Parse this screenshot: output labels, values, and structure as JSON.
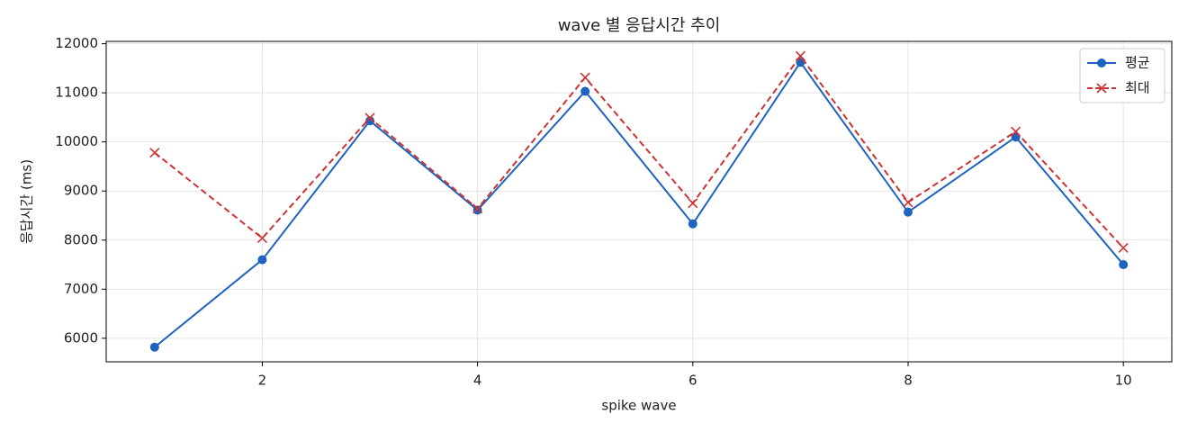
{
  "chart_data": {
    "type": "line",
    "title": "wave 별 응답시간 추이",
    "xlabel": "spike wave",
    "ylabel": "응답시간 (ms)",
    "x": [
      1,
      2,
      3,
      4,
      5,
      6,
      7,
      8,
      9,
      10
    ],
    "series": [
      {
        "name": "평균",
        "color": "#1f63c0",
        "dash": false,
        "marker": "o",
        "values": [
          5820,
          7600,
          10430,
          8610,
          11030,
          8330,
          11620,
          8570,
          10100,
          7500
        ]
      },
      {
        "name": "최대",
        "color": "#cc3333",
        "dash": true,
        "marker": "x",
        "values": [
          9780,
          8040,
          10490,
          8640,
          11310,
          8750,
          11750,
          8770,
          10210,
          7840
        ]
      }
    ],
    "xlim": [
      0.55,
      10.45
    ],
    "xticks": [
      2,
      4,
      6,
      8,
      10
    ],
    "ylim": [
      5521,
      12047
    ],
    "yticks": [
      6000,
      7000,
      8000,
      9000,
      10000,
      11000,
      12000
    ],
    "grid": true,
    "legend": "upper right"
  }
}
